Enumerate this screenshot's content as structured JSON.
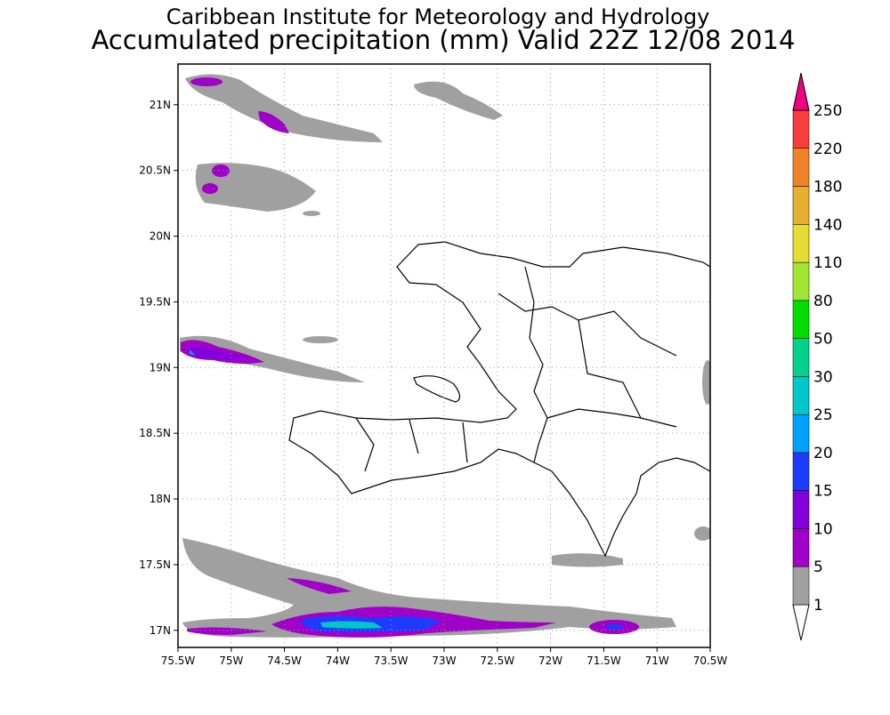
{
  "header": {
    "title": "Caribbean Institute for Meteorology and Hydrology",
    "subtitle": "Accumulated precipitation (mm) Valid 22Z 12/08 2014"
  },
  "map": {
    "lon_range": [
      -75.5,
      -70.5
    ],
    "lat_range": [
      16.87,
      21.31
    ],
    "lon_ticks": [
      {
        "value": -75.5,
        "label": "75.5W"
      },
      {
        "value": -75,
        "label": "75W"
      },
      {
        "value": -74.5,
        "label": "74.5W"
      },
      {
        "value": -74,
        "label": "74W"
      },
      {
        "value": -73.5,
        "label": "73.5W"
      },
      {
        "value": -73,
        "label": "73W"
      },
      {
        "value": -72.5,
        "label": "72.5W"
      },
      {
        "value": -72,
        "label": "72W"
      },
      {
        "value": -71.5,
        "label": "71.5W"
      },
      {
        "value": -71,
        "label": "71W"
      },
      {
        "value": -70.5,
        "label": "70.5W"
      }
    ],
    "lat_ticks": [
      {
        "value": 17,
        "label": "17N"
      },
      {
        "value": 17.5,
        "label": "17.5N"
      },
      {
        "value": 18,
        "label": "18N"
      },
      {
        "value": 18.5,
        "label": "18.5N"
      },
      {
        "value": 19,
        "label": "19N"
      },
      {
        "value": 19.5,
        "label": "19.5N"
      },
      {
        "value": 20,
        "label": "20N"
      },
      {
        "value": 20.5,
        "label": "20.5N"
      },
      {
        "value": 21,
        "label": "21N"
      }
    ],
    "grid": true
  },
  "colorbar": {
    "levels": [
      1,
      5,
      10,
      15,
      20,
      25,
      30,
      50,
      80,
      110,
      140,
      180,
      220,
      250
    ],
    "colors": [
      "#ffffff",
      "#a0a0a0",
      "#a000c8",
      "#8200dc",
      "#1e3cff",
      "#00a0ff",
      "#00c8c8",
      "#00d28c",
      "#00dc00",
      "#a0e632",
      "#e6dc32",
      "#e6af2d",
      "#f08228",
      "#fa3c3c",
      "#f00082"
    ]
  }
}
